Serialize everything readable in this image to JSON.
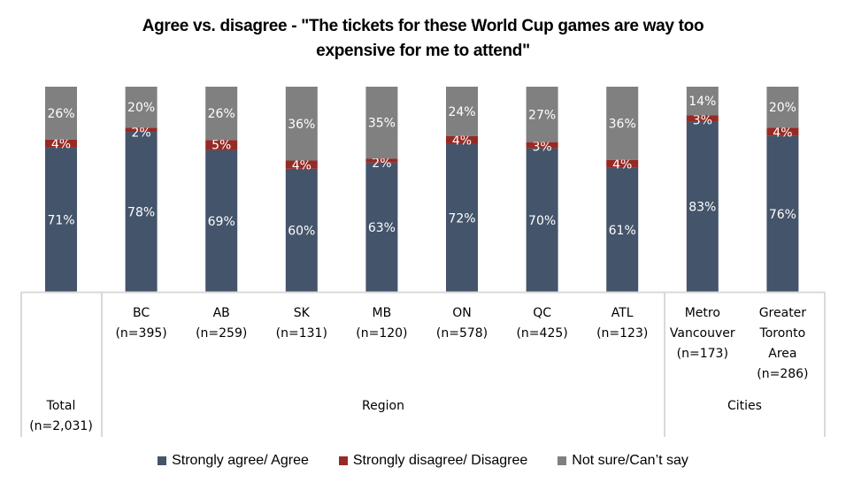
{
  "chart_data": {
    "type": "bar",
    "stacked": true,
    "title": "Agree vs. disagree - \"The tickets for these World Cup games are way too expensive for me to attend\"",
    "title_lines": [
      "Agree vs. disagree - \"The tickets for these World Cup games are way too",
      "expensive for me to attend\""
    ],
    "xlabel": "",
    "ylabel": "",
    "ylim": [
      0,
      100
    ],
    "grid": false,
    "legend_position": "bottom",
    "categories": [
      {
        "label_lines": [
          "Total",
          "(n=2,031)"
        ],
        "group": "Total"
      },
      {
        "label_lines": [
          "BC",
          "(n=395)"
        ],
        "group": "Region"
      },
      {
        "label_lines": [
          "AB",
          "(n=259)"
        ],
        "group": "Region"
      },
      {
        "label_lines": [
          "SK",
          "(n=131)"
        ],
        "group": "Region"
      },
      {
        "label_lines": [
          "MB",
          "(n=120)"
        ],
        "group": "Region"
      },
      {
        "label_lines": [
          "ON",
          "(n=578)"
        ],
        "group": "Region"
      },
      {
        "label_lines": [
          "QC",
          "(n=425)"
        ],
        "group": "Region"
      },
      {
        "label_lines": [
          "ATL",
          "(n=123)"
        ],
        "group": "Region"
      },
      {
        "label_lines": [
          "Metro",
          "Vancouver",
          "(n=173)"
        ],
        "group": "Cities"
      },
      {
        "label_lines": [
          "Greater",
          "Toronto",
          "Area",
          "(n=286)"
        ],
        "group": "Cities"
      }
    ],
    "groups": [
      {
        "label": "Region"
      },
      {
        "label": "Cities"
      }
    ],
    "series": [
      {
        "name": "Strongly agree/ Agree",
        "color": "#44546A",
        "values": [
          71,
          78,
          69,
          60,
          63,
          72,
          70,
          61,
          83,
          76
        ]
      },
      {
        "name": "Strongly disagree/ Disagree",
        "color": "#962A24",
        "values": [
          4,
          2,
          5,
          4,
          2,
          4,
          3,
          4,
          3,
          4
        ]
      },
      {
        "name": "Not sure/Can’t say",
        "color": "#808080",
        "values": [
          26,
          20,
          26,
          36,
          35,
          24,
          27,
          36,
          14,
          20
        ]
      }
    ],
    "value_format": "{v}%"
  }
}
